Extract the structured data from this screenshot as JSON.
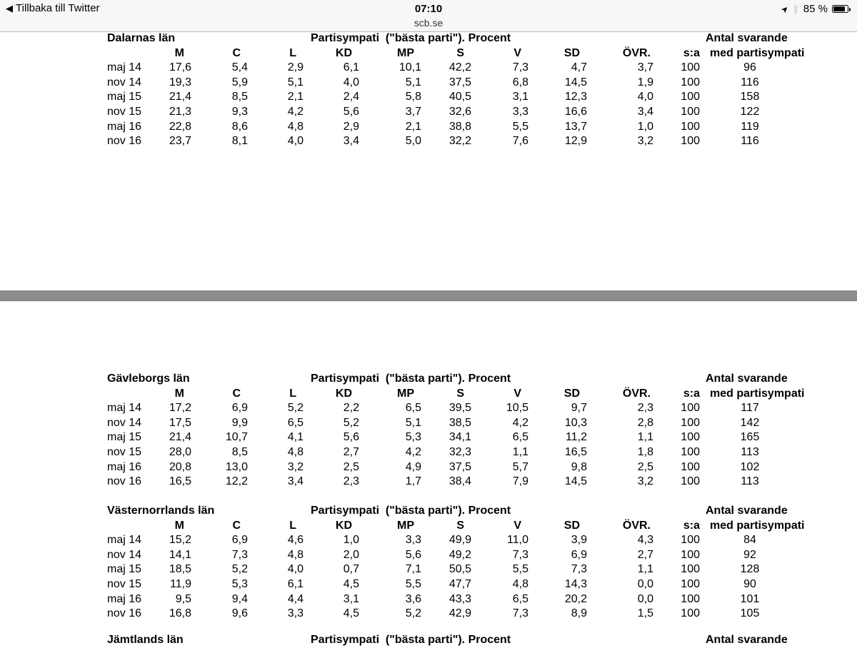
{
  "status_bar": {
    "back_label": "Tillbaka till Twitter",
    "time": "07:10",
    "site": "scb.se",
    "battery_percent": "85 %",
    "icons": {
      "back": "chevron-left-icon",
      "location": "location-arrow-icon",
      "bluetooth": "bluetooth-icon",
      "battery": "battery-icon"
    }
  },
  "report": {
    "subtitle": "Partisympati  (\"bästa parti\"). Procent",
    "respondents_heading": "Antal svarande",
    "columns": [
      "M",
      "C",
      "L",
      "KD",
      "MP",
      "S",
      "V",
      "SD",
      "ÖVR.",
      "s:a",
      "med partisympati"
    ],
    "sections": [
      {
        "name": "Dalarnas län",
        "rows": [
          {
            "label": "maj 14",
            "values": [
              "17,6",
              "5,4",
              "2,9",
              "6,1",
              "10,1",
              "42,2",
              "7,3",
              "4,7",
              "3,7",
              "100",
              "96"
            ]
          },
          {
            "label": "nov 14",
            "values": [
              "19,3",
              "5,9",
              "5,1",
              "4,0",
              "5,1",
              "37,5",
              "6,8",
              "14,5",
              "1,9",
              "100",
              "116"
            ]
          },
          {
            "label": "maj 15",
            "values": [
              "21,4",
              "8,5",
              "2,1",
              "2,4",
              "5,8",
              "40,5",
              "3,1",
              "12,3",
              "4,0",
              "100",
              "158"
            ]
          },
          {
            "label": "nov 15",
            "values": [
              "21,3",
              "9,3",
              "4,2",
              "5,6",
              "3,7",
              "32,6",
              "3,3",
              "16,6",
              "3,4",
              "100",
              "122"
            ]
          },
          {
            "label": "maj 16",
            "values": [
              "22,8",
              "8,6",
              "4,8",
              "2,9",
              "2,1",
              "38,8",
              "5,5",
              "13,7",
              "1,0",
              "100",
              "119"
            ]
          },
          {
            "label": "nov 16",
            "values": [
              "23,7",
              "8,1",
              "4,0",
              "3,4",
              "5,0",
              "32,2",
              "7,6",
              "12,9",
              "3,2",
              "100",
              "116"
            ]
          }
        ]
      },
      {
        "name": "Gävleborgs län",
        "rows": [
          {
            "label": "maj 14",
            "values": [
              "17,2",
              "6,9",
              "5,2",
              "2,2",
              "6,5",
              "39,5",
              "10,5",
              "9,7",
              "2,3",
              "100",
              "117"
            ]
          },
          {
            "label": "nov 14",
            "values": [
              "17,5",
              "9,9",
              "6,5",
              "5,2",
              "5,1",
              "38,5",
              "4,2",
              "10,3",
              "2,8",
              "100",
              "142"
            ]
          },
          {
            "label": "maj 15",
            "values": [
              "21,4",
              "10,7",
              "4,1",
              "5,6",
              "5,3",
              "34,1",
              "6,5",
              "11,2",
              "1,1",
              "100",
              "165"
            ]
          },
          {
            "label": "nov 15",
            "values": [
              "28,0",
              "8,5",
              "4,8",
              "2,7",
              "4,2",
              "32,3",
              "1,1",
              "16,5",
              "1,8",
              "100",
              "113"
            ]
          },
          {
            "label": "maj 16",
            "values": [
              "20,8",
              "13,0",
              "3,2",
              "2,5",
              "4,9",
              "37,5",
              "5,7",
              "9,8",
              "2,5",
              "100",
              "102"
            ]
          },
          {
            "label": "nov 16",
            "values": [
              "16,5",
              "12,2",
              "3,4",
              "2,3",
              "1,7",
              "38,4",
              "7,9",
              "14,5",
              "3,2",
              "100",
              "113"
            ]
          }
        ]
      },
      {
        "name": "Västernorrlands län",
        "rows": [
          {
            "label": "maj 14",
            "values": [
              "15,2",
              "6,9",
              "4,6",
              "1,0",
              "3,3",
              "49,9",
              "11,0",
              "3,9",
              "4,3",
              "100",
              "84"
            ]
          },
          {
            "label": "nov 14",
            "values": [
              "14,1",
              "7,3",
              "4,8",
              "2,0",
              "5,6",
              "49,2",
              "7,3",
              "6,9",
              "2,7",
              "100",
              "92"
            ]
          },
          {
            "label": "maj 15",
            "values": [
              "18,5",
              "5,2",
              "4,0",
              "0,7",
              "7,1",
              "50,5",
              "5,5",
              "7,3",
              "1,1",
              "100",
              "128"
            ]
          },
          {
            "label": "nov 15",
            "values": [
              "11,9",
              "5,3",
              "6,1",
              "4,5",
              "5,5",
              "47,7",
              "4,8",
              "14,3",
              "0,0",
              "100",
              "90"
            ]
          },
          {
            "label": "maj 16",
            "values": [
              "9,5",
              "9,4",
              "4,4",
              "3,1",
              "3,6",
              "43,3",
              "6,5",
              "20,2",
              "0,0",
              "100",
              "101"
            ]
          },
          {
            "label": "nov 16",
            "values": [
              "16,8",
              "9,6",
              "3,3",
              "4,5",
              "5,2",
              "42,9",
              "7,3",
              "8,9",
              "1,5",
              "100",
              "105"
            ]
          }
        ]
      },
      {
        "name": "Jämtlands län",
        "rows": []
      }
    ]
  }
}
